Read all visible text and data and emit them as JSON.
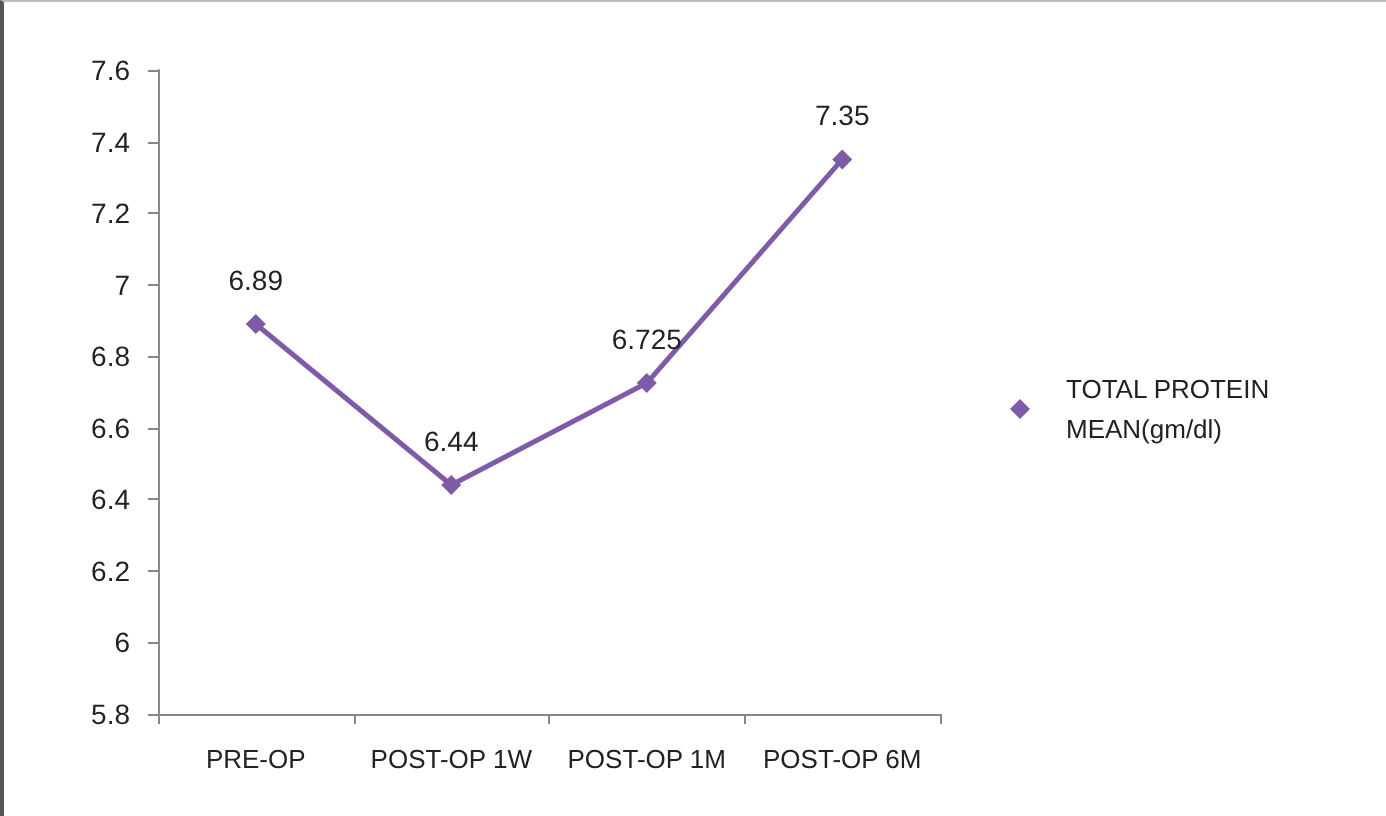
{
  "chart_data": {
    "type": "line",
    "categories": [
      "PRE-OP",
      "POST-OP 1W",
      "POST-OP 1M",
      "POST-OP 6M"
    ],
    "series": [
      {
        "name": "TOTAL PROTEIN MEAN(gm/dl)",
        "color": "#7d5ba6",
        "values": [
          6.89,
          6.44,
          6.725,
          7.35
        ]
      }
    ],
    "ylim": [
      5.8,
      7.6
    ],
    "yticks": [
      5.8,
      6,
      6.2,
      6.4,
      6.6,
      6.8,
      7,
      7.2,
      7.4,
      7.6
    ],
    "grid": false,
    "legend": "right",
    "marker": "diamond",
    "data_labels": true
  }
}
